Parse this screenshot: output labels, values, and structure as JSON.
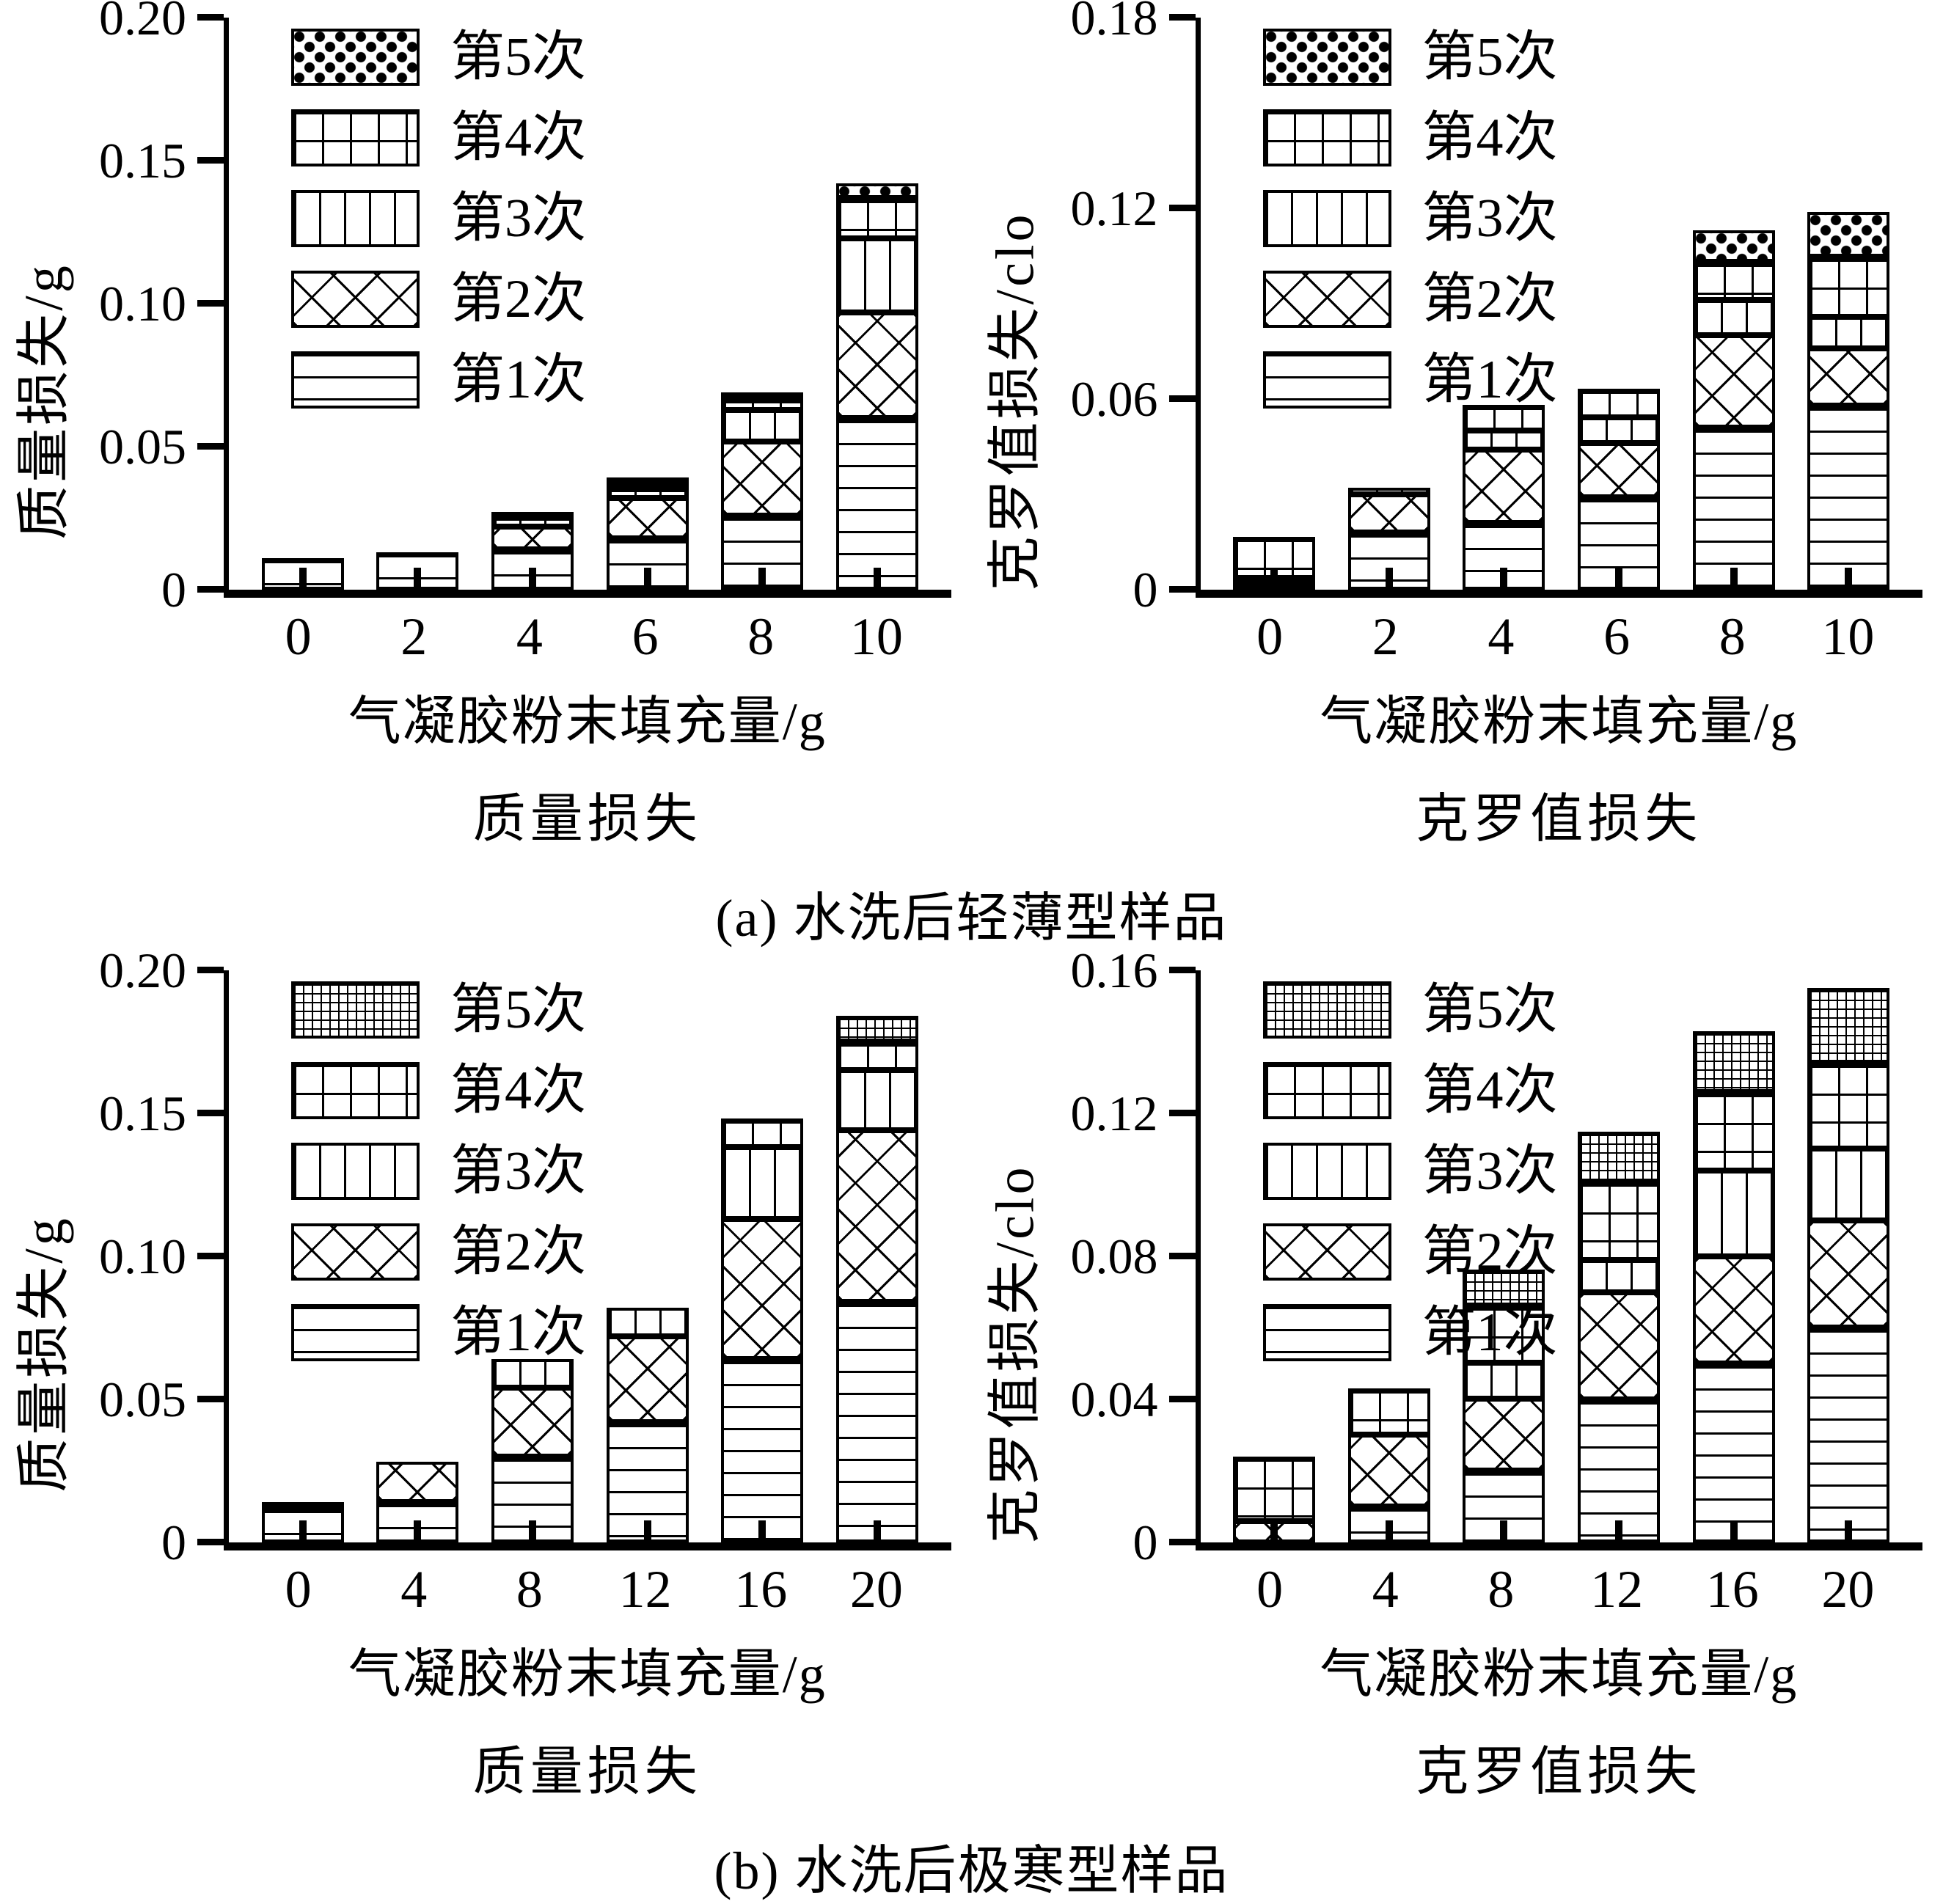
{
  "figure": {
    "xlabel": "气凝胶粉末填充量/g",
    "captions": {
      "a": "(a) 水洗后轻薄型样品",
      "b": "(b) 水洗后极寒型样品"
    },
    "legend_labels": [
      "第5次",
      "第4次",
      "第3次",
      "第2次",
      "第1次"
    ],
    "ink_color": "#000000",
    "background_color": "#ffffff"
  },
  "chart_data": [
    {
      "id": "a-mass-loss",
      "type": "bar",
      "stacked": true,
      "subtitle": "质量损失",
      "ylabel": "质量损失/g",
      "xlabel": "气凝胶粉末填充量/g",
      "ymax": 0.2,
      "grid": false,
      "legend_position": "top-left-inside",
      "ytick_values": [
        0,
        0.05,
        0.1,
        0.15,
        0.2
      ],
      "ytick_labels": [
        "0",
        "0.05",
        "0.10",
        "0.15",
        "0.20"
      ],
      "categories": [
        "0",
        "2",
        "4",
        "6",
        "8",
        "10"
      ],
      "series": [
        {
          "name": "第1次",
          "pattern": "hlines",
          "values": [
            0.011,
            0.013,
            0.014,
            0.018,
            0.026,
            0.06
          ]
        },
        {
          "name": "第2次",
          "pattern": "cross",
          "values": [
            0,
            0,
            0.008,
            0.014,
            0.026,
            0.037
          ]
        },
        {
          "name": "第3次",
          "pattern": "vlines",
          "values": [
            0,
            0,
            0.003,
            0.003,
            0.011,
            0.026
          ]
        },
        {
          "name": "第4次",
          "pattern": "grid",
          "values": [
            0,
            0,
            0.001,
            0.001,
            0.004,
            0.014
          ]
        },
        {
          "name": "第5次",
          "pattern": "dots",
          "values": [
            0,
            0,
            0,
            0.001,
            0.002,
            0.005
          ]
        }
      ]
    },
    {
      "id": "a-clo-loss",
      "type": "bar",
      "stacked": true,
      "subtitle": "克罗值损失",
      "ylabel": "克罗值损失/clo",
      "xlabel": "气凝胶粉末填充量/g",
      "ymax": 0.18,
      "grid": false,
      "legend_position": "top-left-inside",
      "ytick_values": [
        0,
        0.06,
        0.12,
        0.18
      ],
      "ytick_labels": [
        "0",
        "0.06",
        "0.12",
        "0.18"
      ],
      "categories": [
        "0",
        "2",
        "4",
        "6",
        "8",
        "10"
      ],
      "series": [
        {
          "name": "第1次",
          "pattern": "hlines",
          "values": [
            0.001,
            0.018,
            0.021,
            0.029,
            0.051,
            0.058
          ]
        },
        {
          "name": "第2次",
          "pattern": "cross",
          "values": [
            0.001,
            0.012,
            0.023,
            0.017,
            0.029,
            0.018
          ]
        },
        {
          "name": "第3次",
          "pattern": "vlines",
          "values": [
            0,
            0.002,
            0.006,
            0.008,
            0.011,
            0.01
          ]
        },
        {
          "name": "第4次",
          "pattern": "grid",
          "values": [
            0.013,
            0,
            0.008,
            0.009,
            0.012,
            0.019
          ]
        },
        {
          "name": "第5次",
          "pattern": "dots",
          "values": [
            0,
            0,
            0,
            0,
            0.01,
            0.014
          ]
        }
      ]
    },
    {
      "id": "b-mass-loss",
      "type": "bar",
      "stacked": true,
      "subtitle": "质量损失",
      "ylabel": "质量损失/g",
      "xlabel": "气凝胶粉末填充量/g",
      "ymax": 0.2,
      "grid": false,
      "legend_position": "top-left-inside",
      "ytick_values": [
        0,
        0.05,
        0.1,
        0.15,
        0.2
      ],
      "ytick_labels": [
        "0",
        "0.05",
        "0.10",
        "0.15",
        "0.20"
      ],
      "categories": [
        "0",
        "4",
        "8",
        "12",
        "16",
        "20"
      ],
      "series": [
        {
          "name": "第1次",
          "pattern": "hlines",
          "values": [
            0.012,
            0.014,
            0.03,
            0.042,
            0.064,
            0.084
          ]
        },
        {
          "name": "第2次",
          "pattern": "cross",
          "values": [
            0.002,
            0.014,
            0.024,
            0.03,
            0.049,
            0.06
          ]
        },
        {
          "name": "第3次",
          "pattern": "vlines",
          "values": [
            0,
            0,
            0.01,
            0.01,
            0.025,
            0.021
          ]
        },
        {
          "name": "第4次",
          "pattern": "grid",
          "values": [
            0,
            0,
            0,
            0,
            0.01,
            0.01
          ]
        },
        {
          "name": "第5次",
          "pattern": "densegrid",
          "values": [
            0,
            0,
            0,
            0,
            0,
            0.009
          ]
        }
      ]
    },
    {
      "id": "b-clo-loss",
      "type": "bar",
      "stacked": true,
      "subtitle": "克罗值损失",
      "ylabel": "克罗值损失/clo",
      "xlabel": "气凝胶粉末填充量/g",
      "ymax": 0.16,
      "grid": false,
      "legend_position": "top-left-inside",
      "ytick_values": [
        0,
        0.04,
        0.08,
        0.12,
        0.16
      ],
      "ytick_labels": [
        "0",
        "0.04",
        "0.08",
        "0.12",
        "0.16"
      ],
      "categories": [
        "0",
        "4",
        "8",
        "12",
        "16",
        "20"
      ],
      "series": [
        {
          "name": "第1次",
          "pattern": "hlines",
          "values": [
            0,
            0.01,
            0.02,
            0.04,
            0.05,
            0.06
          ]
        },
        {
          "name": "第2次",
          "pattern": "cross",
          "values": [
            0.006,
            0.02,
            0.02,
            0.03,
            0.03,
            0.03
          ]
        },
        {
          "name": "第3次",
          "pattern": "vlines",
          "values": [
            0,
            0,
            0.01,
            0.009,
            0.024,
            0.02
          ]
        },
        {
          "name": "第4次",
          "pattern": "grid",
          "values": [
            0.018,
            0.013,
            0.016,
            0.022,
            0.022,
            0.024
          ]
        },
        {
          "name": "第5次",
          "pattern": "densegrid",
          "values": [
            0,
            0,
            0.01,
            0.014,
            0.017,
            0.021
          ]
        }
      ]
    }
  ]
}
